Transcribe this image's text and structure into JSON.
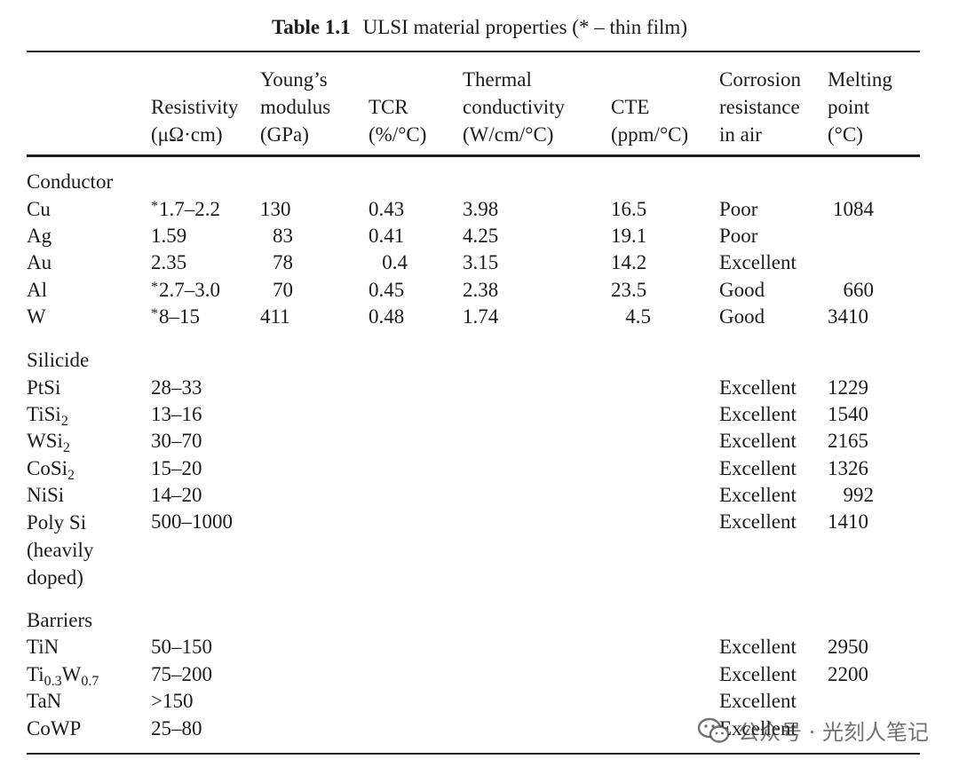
{
  "caption": {
    "label": "Table 1.1",
    "text": "ULSI material properties (* – thin film)"
  },
  "columns": {
    "resistivity": [
      "Resistivity",
      "(μΩ·cm)"
    ],
    "youngs": [
      "Young’s",
      "modulus",
      "(GPa)"
    ],
    "tcr": [
      "TCR",
      "(%/°C)"
    ],
    "thermal": [
      "Thermal",
      "conductivity",
      "(W/cm/°C)"
    ],
    "cte": [
      "CTE",
      "(ppm/°C)"
    ],
    "corrosion": [
      "Corrosion",
      "resistance",
      "in air"
    ],
    "melting": [
      "Melting",
      "point",
      "(°C)"
    ]
  },
  "groups": {
    "conductor": "Conductor",
    "silicide": "Silicide",
    "barriers": "Barriers"
  },
  "rows": {
    "cu": {
      "name": "Cu",
      "star": "*",
      "resistivity": "1.7–2.2",
      "youngs": "130",
      "tcr": "0.43",
      "thermal": "3.98",
      "cte": "16.5",
      "corrosion": "Poor",
      "melting": "1084"
    },
    "ag": {
      "name": "Ag",
      "resistivity": "1.59",
      "youngs": "83",
      "tcr": "0.41",
      "thermal": "4.25",
      "cte": "19.1",
      "corrosion": "Poor",
      "melting": ""
    },
    "au": {
      "name": "Au",
      "resistivity": "2.35",
      "youngs": "78",
      "tcr": "0.4",
      "thermal": "3.15",
      "cte": "14.2",
      "corrosion": "Excellent",
      "melting": ""
    },
    "al": {
      "name": "Al",
      "star": "*",
      "resistivity": "2.7–3.0",
      "youngs": "70",
      "tcr": "0.45",
      "thermal": "2.38",
      "cte": "23.5",
      "corrosion": "Good",
      "melting": "660"
    },
    "w": {
      "name": "W",
      "star": "*",
      "resistivity": "8–15",
      "youngs": "411",
      "tcr": "0.48",
      "thermal": "1.74",
      "cte": "4.5",
      "corrosion": "Good",
      "melting": "3410"
    },
    "ptsi": {
      "name": "PtSi",
      "resistivity": "28–33",
      "corrosion": "Excellent",
      "melting": "1229"
    },
    "tisi2": {
      "name": "TiSi",
      "sub": "2",
      "resistivity": "13–16",
      "corrosion": "Excellent",
      "melting": "1540"
    },
    "wsi2": {
      "name": "WSi",
      "sub": "2",
      "resistivity": "30–70",
      "corrosion": "Excellent",
      "melting": "2165"
    },
    "cosi2": {
      "name": "CoSi",
      "sub": "2",
      "resistivity": "15–20",
      "corrosion": "Excellent",
      "melting": "1326"
    },
    "nisi": {
      "name": "NiSi",
      "resistivity": "14–20",
      "corrosion": "Excellent",
      "melting": "992"
    },
    "polysi": {
      "name": [
        "Poly Si",
        "(heavily",
        "doped)"
      ],
      "resistivity": "500–1000",
      "corrosion": "Excellent",
      "melting": "1410"
    },
    "tin": {
      "name": "TiN",
      "resistivity": "50–150",
      "corrosion": "Excellent",
      "melting": "2950"
    },
    "tiw": {
      "name_a": "Ti",
      "sub_a": "0.3",
      "name_b": "W",
      "sub_b": "0.7",
      "resistivity": "75–200",
      "corrosion": "Excellent",
      "melting": "2200"
    },
    "tan": {
      "name": "TaN",
      "resistivity": ">150",
      "corrosion": "Excellent",
      "melting": ""
    },
    "cowp": {
      "name": "CoWP",
      "resistivity": "25–80",
      "corrosion": "Excellent",
      "melting": ""
    }
  },
  "watermark": {
    "icon": "wechat-icon",
    "text": "公众号 · 光刻人笔记"
  }
}
